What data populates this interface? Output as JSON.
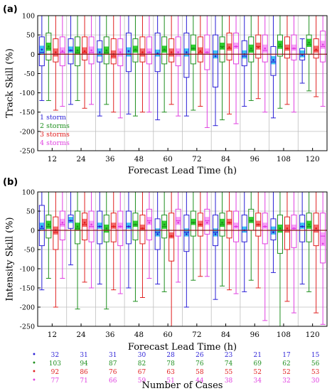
{
  "figure": {
    "colors": {
      "one_storm": "#2a1fd6",
      "two_storms": "#1e8f1e",
      "three_storms": "#e02020",
      "four_storms": "#e040e0",
      "zero_line": "#8b1a1a",
      "grid": "#bfbfbf"
    }
  },
  "chart_data": [
    {
      "type": "box",
      "panel_tag": "(a)",
      "ylabel": "Track Skill (%)",
      "xlabel": "Forecast Lead Time (h)",
      "categories": [
        "12",
        "24",
        "36",
        "48",
        "60",
        "72",
        "84",
        "96",
        "108",
        "120"
      ],
      "ylim": [
        -250,
        100
      ],
      "yticks": [
        -250,
        -200,
        -150,
        -100,
        -50,
        0,
        50,
        100
      ],
      "grid": true,
      "legend_position": "bottom-left",
      "series": [
        {
          "name": "1 storm",
          "color": "#2a1fd6",
          "boxes": [
            {
              "min": -120,
              "q1": -30,
              "median": 5,
              "q3": 45,
              "max": 100,
              "mean": 12
            },
            {
              "min": -130,
              "q1": -25,
              "median": 10,
              "q3": 40,
              "max": 100,
              "mean": 10
            },
            {
              "min": -160,
              "q1": -20,
              "median": 0,
              "q3": 35,
              "max": 100,
              "mean": 5
            },
            {
              "min": -155,
              "q1": -45,
              "median": 0,
              "q3": 55,
              "max": 100,
              "mean": 8
            },
            {
              "min": -170,
              "q1": -45,
              "median": 0,
              "q3": 55,
              "max": 100,
              "mean": 2
            },
            {
              "min": -160,
              "q1": -60,
              "median": 0,
              "q3": 55,
              "max": 100,
              "mean": 5
            },
            {
              "min": -185,
              "q1": -85,
              "median": 0,
              "q3": 50,
              "max": 100,
              "mean": -5
            },
            {
              "min": -135,
              "q1": -30,
              "median": -5,
              "q3": 35,
              "max": 100,
              "mean": 0
            },
            {
              "min": -165,
              "q1": -55,
              "median": -20,
              "q3": 20,
              "max": 100,
              "mean": -15
            },
            {
              "min": -75,
              "q1": -15,
              "median": 0,
              "q3": 15,
              "max": 40,
              "mean": -2
            }
          ]
        },
        {
          "name": "2 storms",
          "color": "#1e8f1e",
          "boxes": [
            {
              "min": -120,
              "q1": -15,
              "median": 15,
              "q3": 55,
              "max": 100,
              "mean": 20
            },
            {
              "min": -120,
              "q1": -30,
              "median": 5,
              "q3": 45,
              "max": 100,
              "mean": 10
            },
            {
              "min": -130,
              "q1": -25,
              "median": 5,
              "q3": 45,
              "max": 100,
              "mean": 10
            },
            {
              "min": -160,
              "q1": -20,
              "median": 10,
              "q3": 40,
              "max": 100,
              "mean": 12
            },
            {
              "min": -150,
              "q1": -25,
              "median": 10,
              "q3": 45,
              "max": 100,
              "mean": 12
            },
            {
              "min": -145,
              "q1": -25,
              "median": 15,
              "q3": 50,
              "max": 100,
              "mean": 15
            },
            {
              "min": -170,
              "q1": -20,
              "median": 20,
              "q3": 45,
              "max": 100,
              "mean": 18
            },
            {
              "min": -120,
              "q1": -20,
              "median": 10,
              "q3": 45,
              "max": 100,
              "mean": 15
            },
            {
              "min": -140,
              "q1": -5,
              "median": 20,
              "q3": 50,
              "max": 100,
              "mean": 25
            },
            {
              "min": -95,
              "q1": 0,
              "median": 25,
              "q3": 50,
              "max": 100,
              "mean": 30
            }
          ]
        },
        {
          "name": "3 storms",
          "color": "#e02020",
          "boxes": [
            {
              "min": -145,
              "q1": -20,
              "median": 0,
              "q3": 40,
              "max": 100,
              "mean": 5
            },
            {
              "min": -140,
              "q1": -15,
              "median": 5,
              "q3": 45,
              "max": 100,
              "mean": 8
            },
            {
              "min": -150,
              "q1": -25,
              "median": -5,
              "q3": 40,
              "max": 100,
              "mean": 0
            },
            {
              "min": -150,
              "q1": -20,
              "median": 0,
              "q3": 45,
              "max": 100,
              "mean": 5
            },
            {
              "min": -130,
              "q1": -20,
              "median": 0,
              "q3": 40,
              "max": 100,
              "mean": 5
            },
            {
              "min": -135,
              "q1": -20,
              "median": 5,
              "q3": 45,
              "max": 100,
              "mean": 8
            },
            {
              "min": -155,
              "q1": -15,
              "median": 15,
              "q3": 55,
              "max": 100,
              "mean": 18
            },
            {
              "min": -115,
              "q1": -10,
              "median": 20,
              "q3": 50,
              "max": 100,
              "mean": 18
            },
            {
              "min": -130,
              "q1": -10,
              "median": 15,
              "q3": 45,
              "max": 100,
              "mean": 15
            },
            {
              "min": -110,
              "q1": -10,
              "median": 10,
              "q3": 40,
              "max": 100,
              "mean": 12
            }
          ]
        },
        {
          "name": "4 storms",
          "color": "#e040e0",
          "boxes": [
            {
              "min": -135,
              "q1": -30,
              "median": 5,
              "q3": 45,
              "max": 100,
              "mean": 8
            },
            {
              "min": -130,
              "q1": -25,
              "median": 5,
              "q3": 45,
              "max": 100,
              "mean": 10
            },
            {
              "min": -165,
              "q1": -30,
              "median": 0,
              "q3": 40,
              "max": 100,
              "mean": 5
            },
            {
              "min": -150,
              "q1": -25,
              "median": 5,
              "q3": 45,
              "max": 100,
              "mean": 5
            },
            {
              "min": -160,
              "q1": -30,
              "median": 0,
              "q3": 45,
              "max": 100,
              "mean": 5
            },
            {
              "min": -190,
              "q1": -40,
              "median": 5,
              "q3": 50,
              "max": 100,
              "mean": 5
            },
            {
              "min": -180,
              "q1": -25,
              "median": 20,
              "q3": 55,
              "max": 100,
              "mean": 20
            },
            {
              "min": -150,
              "q1": -20,
              "median": 10,
              "q3": 50,
              "max": 100,
              "mean": 15
            },
            {
              "min": -150,
              "q1": -15,
              "median": 15,
              "q3": 50,
              "max": 100,
              "mean": 15
            },
            {
              "min": -135,
              "q1": -20,
              "median": 20,
              "q3": 60,
              "max": 100,
              "mean": 25
            }
          ]
        }
      ]
    },
    {
      "type": "box",
      "panel_tag": "(b)",
      "ylabel": "Intensity Skill (%)",
      "xlabel": "Forecast Lead Time (h)",
      "categories": [
        "12",
        "24",
        "36",
        "48",
        "60",
        "72",
        "84",
        "96",
        "108",
        "120"
      ],
      "ylim": [
        -250,
        100
      ],
      "yticks": [
        -250,
        -200,
        -150,
        -100,
        -50,
        0,
        50,
        100
      ],
      "grid": true,
      "series": [
        {
          "name": "1 storm",
          "color": "#2a1fd6",
          "boxes": [
            {
              "min": -155,
              "q1": -40,
              "median": 5,
              "q3": 65,
              "max": 100,
              "mean": 10
            },
            {
              "min": -90,
              "q1": 5,
              "median": 25,
              "q3": 40,
              "max": 100,
              "mean": 25
            },
            {
              "min": -140,
              "q1": -35,
              "median": 10,
              "q3": 50,
              "max": 100,
              "mean": 10
            },
            {
              "min": -150,
              "q1": -35,
              "median": 10,
              "q3": 50,
              "max": 100,
              "mean": 10
            },
            {
              "min": -140,
              "q1": -50,
              "median": -5,
              "q3": 30,
              "max": 100,
              "mean": -10
            },
            {
              "min": -200,
              "q1": -55,
              "median": -5,
              "q3": 40,
              "max": 100,
              "mean": -10
            },
            {
              "min": -180,
              "q1": -40,
              "median": -5,
              "q3": 40,
              "max": 100,
              "mean": -10
            },
            {
              "min": -160,
              "q1": -30,
              "median": 0,
              "q3": 40,
              "max": 100,
              "mean": 0
            },
            {
              "min": -110,
              "q1": -25,
              "median": 0,
              "q3": 30,
              "max": 100,
              "mean": -5
            },
            {
              "min": -140,
              "q1": -30,
              "median": 10,
              "q3": 40,
              "max": 100,
              "mean": 10
            }
          ]
        },
        {
          "name": "2 storms",
          "color": "#1e8f1e",
          "boxes": [
            {
              "min": -125,
              "q1": -20,
              "median": 10,
              "q3": 40,
              "max": 100,
              "mean": 15
            },
            {
              "min": -205,
              "q1": -35,
              "median": 5,
              "q3": 50,
              "max": 100,
              "mean": 10
            },
            {
              "min": -205,
              "q1": -30,
              "median": 0,
              "q3": 40,
              "max": 100,
              "mean": 5
            },
            {
              "min": -185,
              "q1": -25,
              "median": 15,
              "q3": 45,
              "max": 100,
              "mean": 15
            },
            {
              "min": -160,
              "q1": -20,
              "median": 10,
              "q3": 40,
              "max": 100,
              "mean": 15
            },
            {
              "min": -130,
              "q1": -15,
              "median": 20,
              "q3": 50,
              "max": 100,
              "mean": 20
            },
            {
              "min": -145,
              "q1": -15,
              "median": 15,
              "q3": 45,
              "max": 100,
              "mean": 20
            },
            {
              "min": -130,
              "q1": 0,
              "median": 25,
              "q3": 55,
              "max": 100,
              "mean": 25
            },
            {
              "min": -250,
              "q1": -60,
              "median": 0,
              "q3": 40,
              "max": 100,
              "mean": 5
            },
            {
              "min": -160,
              "q1": -30,
              "median": 10,
              "q3": 45,
              "max": 100,
              "mean": 15
            }
          ]
        },
        {
          "name": "3 storms",
          "color": "#e02020",
          "boxes": [
            {
              "min": -200,
              "q1": -50,
              "median": -5,
              "q3": 35,
              "max": 100,
              "mean": 0
            },
            {
              "min": -135,
              "q1": -25,
              "median": 15,
              "q3": 45,
              "max": 100,
              "mean": 20
            },
            {
              "min": -155,
              "q1": -30,
              "median": 10,
              "q3": 45,
              "max": 100,
              "mean": 10
            },
            {
              "min": -175,
              "q1": -35,
              "median": 5,
              "q3": 40,
              "max": 100,
              "mean": 5
            },
            {
              "min": -250,
              "q1": -80,
              "median": -15,
              "q3": 45,
              "max": 100,
              "mean": -15
            },
            {
              "min": -120,
              "q1": -15,
              "median": 15,
              "q3": 45,
              "max": 100,
              "mean": 15
            },
            {
              "min": -155,
              "q1": -20,
              "median": 20,
              "q3": 50,
              "max": 100,
              "mean": 20
            },
            {
              "min": -150,
              "q1": -15,
              "median": 15,
              "q3": 45,
              "max": 100,
              "mean": 15
            },
            {
              "min": -185,
              "q1": -50,
              "median": 0,
              "q3": 35,
              "max": 100,
              "mean": 5
            },
            {
              "min": -215,
              "q1": -40,
              "median": 0,
              "q3": 45,
              "max": 100,
              "mean": 5
            }
          ]
        },
        {
          "name": "4 storms",
          "color": "#e040e0",
          "boxes": [
            {
              "min": -125,
              "q1": -25,
              "median": 15,
              "q3": 50,
              "max": 100,
              "mean": 20
            },
            {
              "min": -150,
              "q1": -30,
              "median": 10,
              "q3": 50,
              "max": 100,
              "mean": 15
            },
            {
              "min": -165,
              "q1": -40,
              "median": 10,
              "q3": 50,
              "max": 100,
              "mean": 10
            },
            {
              "min": -125,
              "q1": -25,
              "median": 25,
              "q3": 55,
              "max": 100,
              "mean": 20
            },
            {
              "min": -135,
              "q1": -15,
              "median": 25,
              "q3": 55,
              "max": 100,
              "mean": 20
            },
            {
              "min": -120,
              "q1": -10,
              "median": 25,
              "q3": 55,
              "max": 100,
              "mean": 20
            },
            {
              "min": -165,
              "q1": -30,
              "median": 10,
              "q3": 50,
              "max": 100,
              "mean": 10
            },
            {
              "min": -235,
              "q1": -35,
              "median": 10,
              "q3": 45,
              "max": 100,
              "mean": 10
            },
            {
              "min": -215,
              "q1": -45,
              "median": 5,
              "q3": 40,
              "max": 100,
              "mean": 5
            },
            {
              "min": -245,
              "q1": -85,
              "median": -15,
              "q3": 45,
              "max": 100,
              "mean": -35
            }
          ]
        }
      ]
    }
  ],
  "cases_table": {
    "title": "Number of Cases",
    "rows": [
      {
        "color": "#2a1fd6",
        "values": [
          "32",
          "31",
          "31",
          "30",
          "28",
          "26",
          "23",
          "21",
          "17",
          "15"
        ]
      },
      {
        "color": "#1e8f1e",
        "values": [
          "103",
          "94",
          "87",
          "82",
          "78",
          "76",
          "74",
          "69",
          "62",
          "56"
        ]
      },
      {
        "color": "#e02020",
        "values": [
          "92",
          "86",
          "76",
          "67",
          "63",
          "58",
          "55",
          "52",
          "52",
          "53"
        ]
      },
      {
        "color": "#e040e0",
        "values": [
          "77",
          "71",
          "66",
          "59",
          "51",
          "44",
          "38",
          "34",
          "32",
          "30"
        ]
      }
    ]
  }
}
